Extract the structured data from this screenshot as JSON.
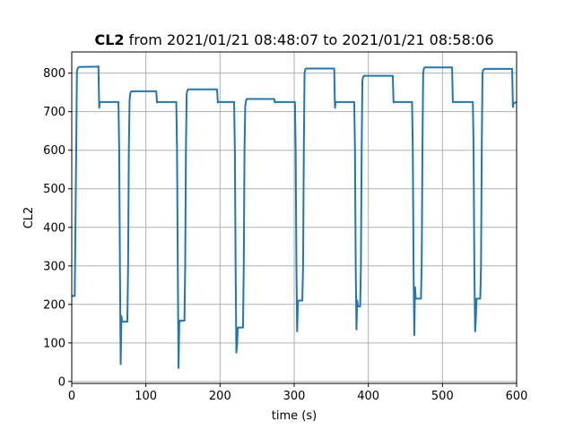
{
  "chart_data": {
    "type": "line",
    "title_bold": "CL2",
    "title_rest": " from 2021/01/21 08:48:07 to 2021/01/21 08:58:06",
    "xlabel": "time (s)",
    "ylabel": "CL2",
    "xlim": [
      0,
      600
    ],
    "ylim": [
      -5,
      855
    ],
    "xticks": [
      0,
      100,
      200,
      300,
      400,
      500,
      600
    ],
    "yticks": [
      0,
      100,
      200,
      300,
      400,
      500,
      600,
      700,
      800
    ],
    "grid": true,
    "line_color": "#1f77b4",
    "series": [
      {
        "x": [
          0,
          4,
          5,
          6,
          7,
          8,
          9,
          10,
          35,
          36,
          37,
          38,
          62,
          63,
          64,
          65,
          66,
          67,
          68,
          69,
          74,
          75,
          76,
          77,
          78,
          79,
          80,
          81,
          113,
          114,
          115,
          116,
          140,
          141,
          142,
          143,
          144,
          145,
          146,
          147,
          151,
          152,
          153,
          154,
          155,
          156,
          157,
          158,
          195,
          196,
          197,
          198,
          218,
          219,
          220,
          221,
          222,
          223,
          224,
          225,
          230,
          231,
          232,
          233,
          234,
          235,
          236,
          237,
          272,
          273,
          274,
          275,
          300,
          301,
          302,
          303,
          304,
          305,
          306,
          307,
          310,
          311,
          312,
          313,
          314,
          315,
          316,
          317,
          353,
          354,
          355,
          356,
          380,
          381,
          382,
          383,
          384,
          385,
          386,
          387,
          388,
          389,
          390,
          391,
          392,
          393,
          394,
          395,
          432,
          433,
          434,
          435,
          458,
          459,
          460,
          461,
          462,
          463,
          464,
          465,
          470,
          471,
          472,
          473,
          474,
          475,
          476,
          477,
          512,
          513,
          514,
          515,
          540,
          541,
          542,
          543,
          544,
          545,
          546,
          547,
          550,
          551,
          552,
          553,
          554,
          555,
          556,
          557,
          593,
          594,
          595,
          596,
          600
        ],
        "y": [
          222,
          222,
          400,
          600,
          805,
          812,
          815,
          816,
          817,
          818,
          710,
          725,
          725,
          725,
          600,
          300,
          45,
          170,
          155,
          155,
          155,
          155,
          300,
          600,
          730,
          748,
          752,
          753,
          753,
          753,
          724,
          725,
          725,
          725,
          600,
          300,
          35,
          150,
          158,
          158,
          158,
          158,
          300,
          600,
          745,
          755,
          758,
          758,
          758,
          758,
          724,
          725,
          725,
          725,
          600,
          300,
          75,
          95,
          140,
          140,
          140,
          140,
          300,
          600,
          715,
          728,
          733,
          733,
          733,
          733,
          724,
          725,
          725,
          725,
          600,
          300,
          130,
          205,
          210,
          210,
          210,
          210,
          300,
          600,
          800,
          810,
          812,
          812,
          812,
          812,
          710,
          725,
          725,
          725,
          600,
          300,
          135,
          210,
          195,
          195,
          195,
          195,
          300,
          600,
          780,
          790,
          793,
          793,
          793,
          793,
          724,
          725,
          725,
          725,
          600,
          300,
          120,
          245,
          215,
          215,
          215,
          215,
          300,
          600,
          800,
          812,
          815,
          815,
          815,
          815,
          725,
          725,
          725,
          725,
          600,
          300,
          130,
          160,
          215,
          215,
          215,
          215,
          300,
          600,
          800,
          808,
          810,
          811,
          811,
          811,
          712,
          722,
          725
        ]
      }
    ]
  }
}
